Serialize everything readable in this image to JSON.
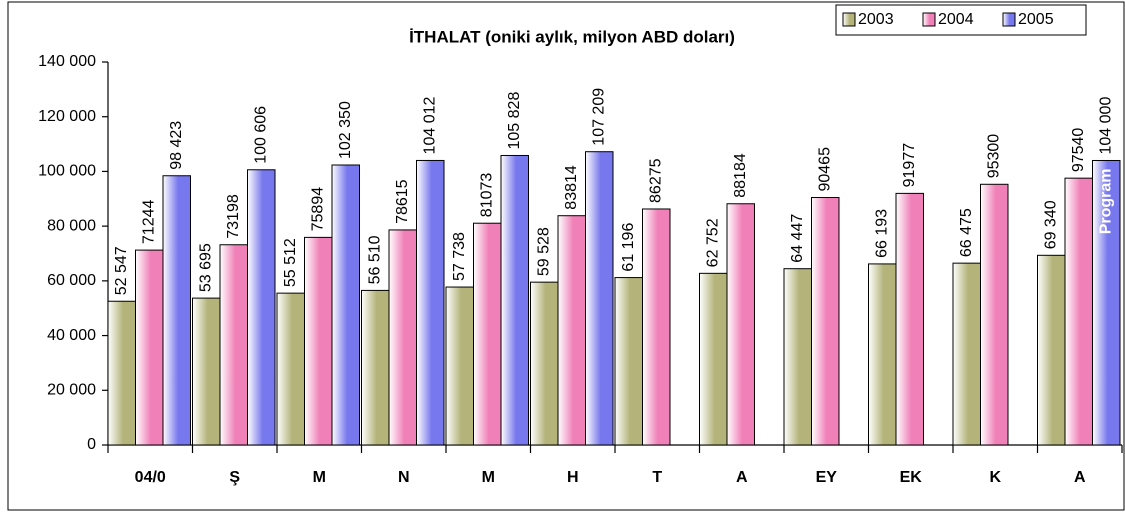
{
  "chart_data": {
    "type": "bar",
    "title": "İTHALAT (oniki aylık, milyon ABD doları)",
    "annotation": "Program",
    "categories": [
      "04/0",
      "Ş",
      "M",
      "N",
      "M",
      "H",
      "T",
      "A",
      "EY",
      "EK",
      "K",
      "A"
    ],
    "series": [
      {
        "name": "2003",
        "color": "#b3b37a",
        "values": [
          52547,
          53695,
          55512,
          56510,
          57738,
          59528,
          61196,
          62752,
          64447,
          66193,
          66475,
          69340
        ],
        "value_labels": [
          "52 547",
          "53 695",
          "55 512",
          "56 510",
          "57 738",
          "59 528",
          "61 196",
          "62 752",
          "64 447",
          "66 193",
          "66 475",
          "69 340"
        ]
      },
      {
        "name": "2004",
        "color": "#f080b8",
        "values": [
          71244,
          73198,
          75894,
          78615,
          81073,
          83814,
          86275,
          88184,
          90465,
          91977,
          95300,
          97540
        ]
      },
      {
        "name": "2005",
        "color": "#7777ee",
        "values": [
          98423,
          100606,
          102350,
          104012,
          105828,
          107209,
          null,
          null,
          null,
          null,
          null,
          104000
        ],
        "value_labels": [
          "98 423",
          "100 606",
          "102 350",
          "104 012",
          "105 828",
          "107 209",
          null,
          null,
          null,
          null,
          null,
          "104 000"
        ]
      }
    ],
    "ylim": [
      0,
      140000
    ],
    "yticks": [
      0,
      {
        "value": 20000,
        "label": "20 000"
      },
      {
        "value": 40000,
        "label": "40 000"
      },
      {
        "value": 60000,
        "label": "60 000"
      },
      {
        "value": 80000,
        "label": "80 000"
      },
      {
        "value": 100000,
        "label": "100 000"
      },
      {
        "value": 120000,
        "label": "120 000"
      },
      {
        "value": 140000,
        "label": "140 000"
      }
    ],
    "legend": "top-right"
  }
}
